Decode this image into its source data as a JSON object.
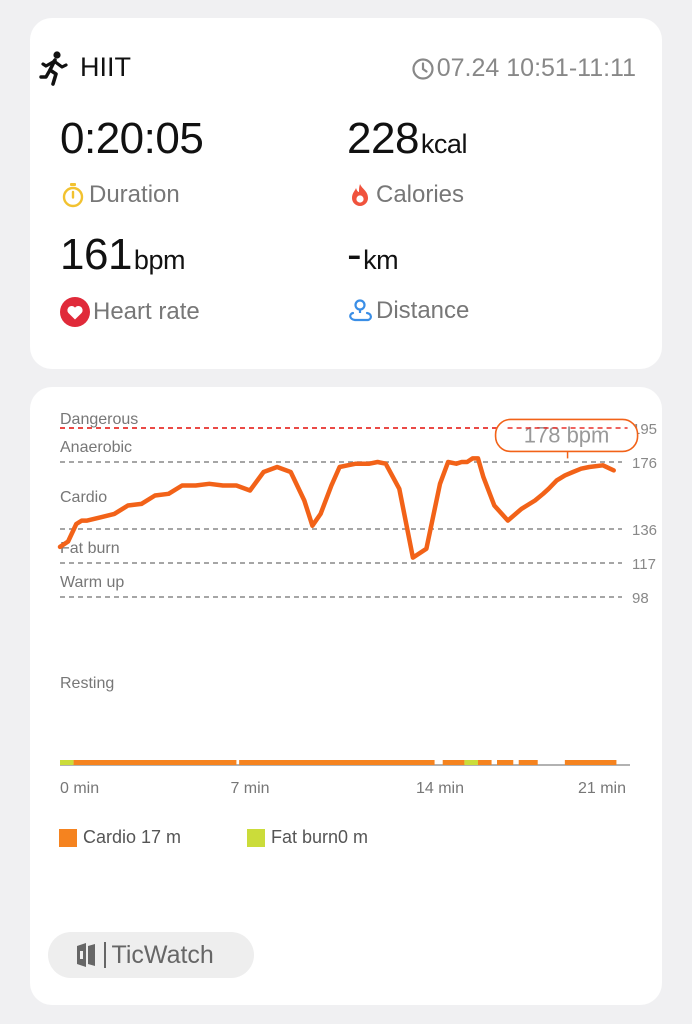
{
  "workout": {
    "title": "HIIT",
    "time_range": "07.24 10:51-11:11"
  },
  "metrics": {
    "duration": {
      "value": "0:20:05",
      "unit": "",
      "label": "Duration"
    },
    "calories": {
      "value": "228",
      "unit": "kcal",
      "label": "Calories"
    },
    "heart_rate": {
      "value": "161",
      "unit": "bpm",
      "label": "Heart rate"
    },
    "distance": {
      "value": "-",
      "unit": "km",
      "label": "Distance"
    }
  },
  "chart_data": {
    "type": "line",
    "x": [
      0,
      0.3,
      0.6,
      0.8,
      1,
      1.5,
      2,
      2.5,
      3,
      3.5,
      4,
      4.5,
      5,
      5.5,
      6,
      6.5,
      7,
      7.5,
      8,
      8.5,
      9,
      9.3,
      9.6,
      10,
      10.3,
      10.6,
      10.9,
      11.2,
      11.4,
      11.7,
      12,
      12.5,
      13,
      13.5,
      14,
      14.3,
      14.6,
      14.8,
      15,
      15.2,
      15.4,
      15.6,
      16,
      16.5,
      17,
      17.5,
      17.8,
      18,
      18.3,
      18.6,
      18.9,
      19.2,
      19.5,
      20,
      20.4
    ],
    "y": [
      126,
      129,
      139,
      141,
      141,
      143,
      145,
      150,
      151,
      156,
      157,
      162,
      162,
      163,
      162,
      162,
      159,
      170,
      173,
      170,
      153,
      138,
      145,
      162,
      173,
      174,
      175,
      175,
      175,
      176,
      175,
      160,
      120,
      125,
      163,
      176,
      175,
      176,
      176,
      178,
      178,
      167,
      150,
      141,
      148,
      153,
      157,
      160,
      165,
      168,
      170,
      172,
      173,
      174,
      171
    ],
    "xlabel_ticks": [
      "0 min",
      "7 min",
      "14 min",
      "21 min"
    ],
    "xticks": [
      0,
      7,
      14,
      21
    ],
    "ylim": [
      40,
      195
    ],
    "series_color": "#f26218",
    "zones": [
      {
        "name": "Dangerous",
        "threshold": 195,
        "color": "#e8312c"
      },
      {
        "name": "Anaerobic",
        "threshold": 176,
        "color": "#888888"
      },
      {
        "name": "Cardio",
        "threshold": 136,
        "color": "#888888"
      },
      {
        "name": "Fat burn",
        "threshold": 117,
        "color": "#888888"
      },
      {
        "name": "Warm up",
        "threshold": 98,
        "color": "#888888"
      },
      {
        "name": "Resting",
        "threshold": null,
        "color": "#888888"
      }
    ],
    "threshold_labels": [
      "195",
      "176",
      "136",
      "117",
      "98"
    ],
    "max_callout": {
      "text": "178 bpm",
      "x": 18.7,
      "y": 178
    },
    "timeline": [
      {
        "start": 0,
        "end": 0.5,
        "zone": "fat_burn"
      },
      {
        "start": 0.5,
        "end": 6.5,
        "zone": "cardio"
      },
      {
        "start": 6.6,
        "end": 13.8,
        "zone": "cardio"
      },
      {
        "start": 14.1,
        "end": 14.9,
        "zone": "cardio"
      },
      {
        "start": 14.9,
        "end": 15.4,
        "zone": "fat_burn"
      },
      {
        "start": 15.4,
        "end": 15.9,
        "zone": "cardio"
      },
      {
        "start": 16.1,
        "end": 16.7,
        "zone": "cardio"
      },
      {
        "start": 16.9,
        "end": 17.6,
        "zone": "cardio"
      },
      {
        "start": 18.6,
        "end": 20.5,
        "zone": "cardio"
      }
    ],
    "legend": [
      {
        "label": "Cardio 17 m",
        "color": "#f5831f"
      },
      {
        "label": "Fat burn0 m",
        "color": "#cbdc3a"
      }
    ]
  },
  "brand": {
    "name": "TicWatch"
  },
  "icons": {
    "workout": "running-person-icon",
    "time": "clock-icon",
    "duration": "stopwatch-icon",
    "calories": "flame-icon",
    "heart_rate": "heart-icon",
    "distance": "location-pin-icon",
    "brand": "ticwatch-logo-icon"
  },
  "colors": {
    "duration_icon": "#f2c230",
    "calories_icon": "#f0533d",
    "heart_icon": "#e02a3a",
    "distance_icon": "#3a8ee6"
  }
}
